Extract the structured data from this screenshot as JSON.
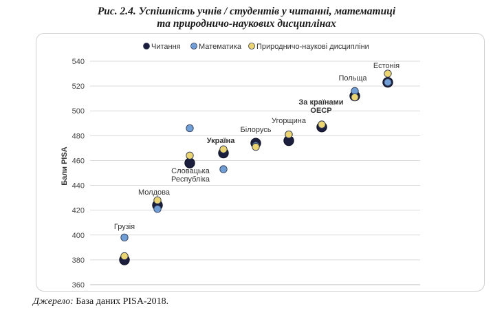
{
  "figure": {
    "title_line1": "Рис. 2.4. Успішність учнів / студентів у читанні, математиці",
    "title_line2": "та природничо-наукових дисциплінах"
  },
  "source": {
    "label": "Джерело:",
    "text": " База даних PISA-2018."
  },
  "colors": {
    "reading": "#1b1e3c",
    "math": "#6f9fd6",
    "science": "#ecd46f",
    "grid": "#d9d9d9",
    "marker_stroke": "#2e3a55"
  },
  "chart_data": {
    "type": "scatter",
    "title": "",
    "xlabel": "",
    "ylabel": "Бали PISA",
    "ylim": [
      360,
      540
    ],
    "yticks": [
      360,
      380,
      400,
      420,
      440,
      460,
      480,
      500,
      520,
      540
    ],
    "grid": "horizontal",
    "legend_position": "top",
    "categories": [
      "Грузія",
      "Молдова",
      "Словацька Республіка",
      "Україна",
      "Білорусь",
      "Угорщина",
      "За країнами ОЕСР",
      "Польща",
      "Естонія"
    ],
    "category_labels": [
      {
        "lines": [
          "Грузія"
        ],
        "bold": false
      },
      {
        "lines": [
          "Молдова"
        ],
        "bold": false
      },
      {
        "lines": [
          "Словацька",
          "Республіка"
        ],
        "bold": false
      },
      {
        "lines": [
          "Україна"
        ],
        "bold": true
      },
      {
        "lines": [
          "Білорусь"
        ],
        "bold": false
      },
      {
        "lines": [
          "Угорщина"
        ],
        "bold": false
      },
      {
        "lines": [
          "За країнами",
          "ОЕСР"
        ],
        "bold": true
      },
      {
        "lines": [
          "Польща"
        ],
        "bold": false
      },
      {
        "lines": [
          "Естонія"
        ],
        "bold": false
      }
    ],
    "series": [
      {
        "name": "Читання",
        "key": "reading",
        "values": [
          380,
          424,
          458,
          466,
          474,
          476,
          487,
          512,
          523
        ]
      },
      {
        "name": "Математика",
        "key": "math",
        "values": [
          398,
          421,
          486,
          453,
          472,
          481,
          489,
          516,
          523
        ]
      },
      {
        "name": "Природничо-наукові дисципліни",
        "key": "science",
        "values": [
          383,
          428,
          464,
          469,
          471,
          481,
          489,
          511,
          530
        ]
      }
    ]
  }
}
